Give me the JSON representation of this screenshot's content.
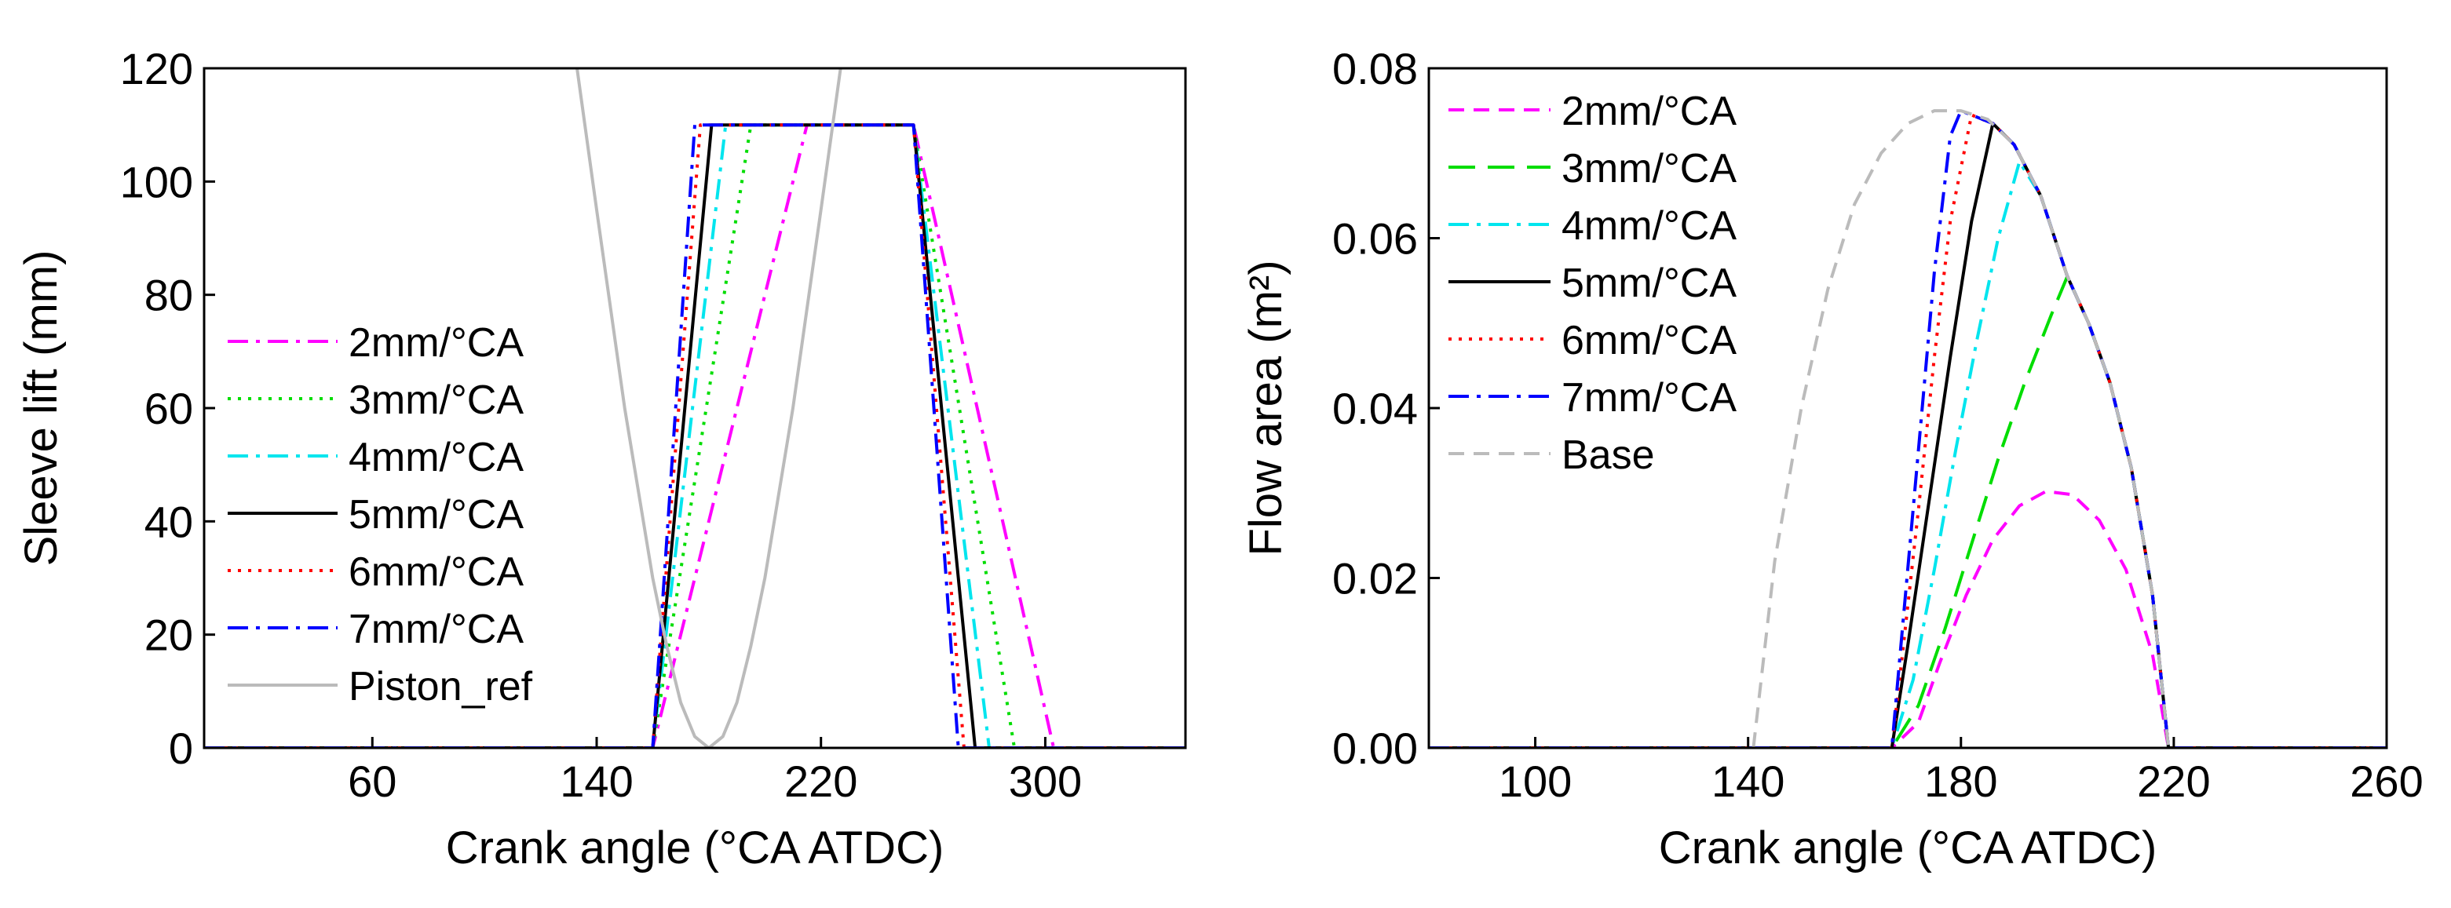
{
  "chart_data": [
    {
      "id": "left",
      "type": "line",
      "xlabel": "Crank angle (°CA ATDC)",
      "ylabel": "Sleeve lift (mm)",
      "xlim": [
        0,
        350
      ],
      "ylim": [
        0,
        120
      ],
      "xticks": [
        60,
        140,
        220,
        300
      ],
      "yticks": [
        0,
        20,
        40,
        60,
        80,
        100,
        120
      ],
      "legend_position": "left-middle",
      "series": [
        {
          "name": "2mm/°CA",
          "color": "#ff00ff",
          "dash": "dashdot",
          "points": [
            [
              0,
              0
            ],
            [
              160,
              0
            ],
            [
              160,
              0
            ],
            [
              215,
              110
            ],
            [
              253,
              110
            ],
            [
              303,
              0
            ],
            [
              350,
              0
            ]
          ]
        },
        {
          "name": "3mm/°CA",
          "color": "#00dd00",
          "dash": "dot",
          "points": [
            [
              0,
              0
            ],
            [
              160,
              0
            ],
            [
              160,
              0
            ],
            [
              195,
              110
            ],
            [
              253,
              110
            ],
            [
              289,
              0
            ],
            [
              350,
              0
            ]
          ]
        },
        {
          "name": "4mm/°CA",
          "color": "#00e5ee",
          "dash": "dashdot",
          "points": [
            [
              0,
              0
            ],
            [
              160,
              0
            ],
            [
              160,
              0
            ],
            [
              186,
              110
            ],
            [
              253,
              110
            ],
            [
              280,
              0
            ],
            [
              350,
              0
            ]
          ]
        },
        {
          "name": "5mm/°CA",
          "color": "#000000",
          "dash": "solid",
          "points": [
            [
              0,
              0
            ],
            [
              160,
              0
            ],
            [
              160,
              0
            ],
            [
              181,
              110
            ],
            [
              253,
              110
            ],
            [
              275,
              0
            ],
            [
              350,
              0
            ]
          ]
        },
        {
          "name": "6mm/°CA",
          "color": "#ff0000",
          "dash": "dot",
          "points": [
            [
              0,
              0
            ],
            [
              160,
              0
            ],
            [
              160,
              0
            ],
            [
              177,
              110
            ],
            [
              253,
              110
            ],
            [
              271,
              0
            ],
            [
              350,
              0
            ]
          ]
        },
        {
          "name": "7mm/°CA",
          "color": "#0000ff",
          "dash": "dashdot",
          "points": [
            [
              0,
              0
            ],
            [
              160,
              0
            ],
            [
              160,
              0
            ],
            [
              175,
              110
            ],
            [
              253,
              110
            ],
            [
              269,
              0
            ],
            [
              350,
              0
            ]
          ]
        },
        {
          "name": "Piston_ref",
          "color": "#bbbbbb",
          "dash": "solid",
          "points": [
            [
              133,
              120
            ],
            [
              140,
              95
            ],
            [
              150,
              60
            ],
            [
              160,
              30
            ],
            [
              165,
              18
            ],
            [
              170,
              8
            ],
            [
              175,
              2
            ],
            [
              180,
              0
            ],
            [
              185,
              2
            ],
            [
              190,
              8
            ],
            [
              195,
              18
            ],
            [
              200,
              30
            ],
            [
              210,
              60
            ],
            [
              220,
              95
            ],
            [
              227,
              120
            ]
          ]
        }
      ]
    },
    {
      "id": "right",
      "type": "line",
      "xlabel": "Crank angle (°CA ATDC)",
      "ylabel": "Flow area (m²)",
      "xlim": [
        80,
        260
      ],
      "ylim": [
        0,
        0.08
      ],
      "xticks": [
        100,
        140,
        180,
        220,
        260
      ],
      "yticks": [
        0.0,
        0.02,
        0.04,
        0.06,
        0.08
      ],
      "legend_position": "top-left",
      "series": [
        {
          "name": "2mm/°CA",
          "color": "#ff00ff",
          "dash": "dash",
          "points": [
            [
              80,
              0
            ],
            [
              167,
              0
            ],
            [
              172,
              0.003
            ],
            [
              176,
              0.01
            ],
            [
              181,
              0.018
            ],
            [
              186,
              0.0245
            ],
            [
              191,
              0.0285
            ],
            [
              196,
              0.0302
            ],
            [
              201,
              0.0298
            ],
            [
              206,
              0.0268
            ],
            [
              211,
              0.021
            ],
            [
              216,
              0.011
            ],
            [
              219,
              0
            ],
            [
              260,
              0
            ]
          ]
        },
        {
          "name": "3mm/°CA",
          "color": "#00dd00",
          "dash": "longdash",
          "points": [
            [
              80,
              0
            ],
            [
              167,
              0
            ],
            [
              172,
              0.005
            ],
            [
              177,
              0.014
            ],
            [
              182,
              0.024
            ],
            [
              187,
              0.034
            ],
            [
              192,
              0.043
            ],
            [
              197,
              0.051
            ],
            [
              200,
              0.0555
            ],
            [
              204,
              0.05
            ],
            [
              208,
              0.043
            ],
            [
              212,
              0.033
            ],
            [
              216,
              0.018
            ],
            [
              219,
              0
            ],
            [
              260,
              0
            ]
          ]
        },
        {
          "name": "4mm/°CA",
          "color": "#00e5ee",
          "dash": "dashdot",
          "points": [
            [
              80,
              0
            ],
            [
              167,
              0
            ],
            [
              171,
              0.008
            ],
            [
              175,
              0.021
            ],
            [
              179,
              0.035
            ],
            [
              183,
              0.048
            ],
            [
              187,
              0.06
            ],
            [
              191,
              0.069
            ],
            [
              195,
              0.065
            ],
            [
              200,
              0.0555
            ],
            [
              204,
              0.05
            ],
            [
              208,
              0.043
            ],
            [
              212,
              0.033
            ],
            [
              216,
              0.018
            ],
            [
              219,
              0
            ],
            [
              260,
              0
            ]
          ]
        },
        {
          "name": "5mm/°CA",
          "color": "#000000",
          "dash": "solid",
          "points": [
            [
              80,
              0
            ],
            [
              167,
              0
            ],
            [
              170,
              0.012
            ],
            [
              174,
              0.029
            ],
            [
              178,
              0.046
            ],
            [
              182,
              0.062
            ],
            [
              186,
              0.0735
            ],
            [
              190,
              0.071
            ],
            [
              195,
              0.065
            ],
            [
              200,
              0.0555
            ],
            [
              204,
              0.05
            ],
            [
              208,
              0.043
            ],
            [
              212,
              0.033
            ],
            [
              216,
              0.018
            ],
            [
              219,
              0
            ],
            [
              260,
              0
            ]
          ]
        },
        {
          "name": "6mm/°CA",
          "color": "#ff0000",
          "dash": "dot",
          "points": [
            [
              80,
              0
            ],
            [
              167,
              0
            ],
            [
              169,
              0.011
            ],
            [
              172,
              0.028
            ],
            [
              175,
              0.046
            ],
            [
              178,
              0.062
            ],
            [
              182,
              0.0745
            ],
            [
              186,
              0.0735
            ],
            [
              190,
              0.071
            ],
            [
              195,
              0.065
            ],
            [
              200,
              0.0555
            ],
            [
              204,
              0.05
            ],
            [
              208,
              0.043
            ],
            [
              212,
              0.033
            ],
            [
              216,
              0.018
            ],
            [
              219,
              0
            ],
            [
              260,
              0
            ]
          ]
        },
        {
          "name": "7mm/°CA",
          "color": "#0000ff",
          "dash": "dashdot",
          "points": [
            [
              80,
              0
            ],
            [
              167,
              0
            ],
            [
              169,
              0.014
            ],
            [
              172,
              0.035
            ],
            [
              175,
              0.056
            ],
            [
              178,
              0.072
            ],
            [
              180,
              0.075
            ],
            [
              182,
              0.0745
            ],
            [
              186,
              0.0735
            ],
            [
              190,
              0.071
            ],
            [
              195,
              0.065
            ],
            [
              200,
              0.0555
            ],
            [
              204,
              0.05
            ],
            [
              208,
              0.043
            ],
            [
              212,
              0.033
            ],
            [
              216,
              0.018
            ],
            [
              219,
              0
            ],
            [
              260,
              0
            ]
          ]
        },
        {
          "name": "Base",
          "color": "#bbbbbb",
          "dash": "dash",
          "points": [
            [
              141,
              0
            ],
            [
              145,
              0.022
            ],
            [
              150,
              0.04
            ],
            [
              155,
              0.054
            ],
            [
              160,
              0.064
            ],
            [
              165,
              0.07
            ],
            [
              170,
              0.0735
            ],
            [
              175,
              0.075
            ],
            [
              180,
              0.075
            ],
            [
              185,
              0.074
            ],
            [
              190,
              0.071
            ],
            [
              195,
              0.065
            ],
            [
              200,
              0.0555
            ],
            [
              204,
              0.05
            ],
            [
              208,
              0.043
            ],
            [
              212,
              0.033
            ],
            [
              216,
              0.018
            ],
            [
              219,
              0
            ]
          ]
        }
      ]
    }
  ]
}
